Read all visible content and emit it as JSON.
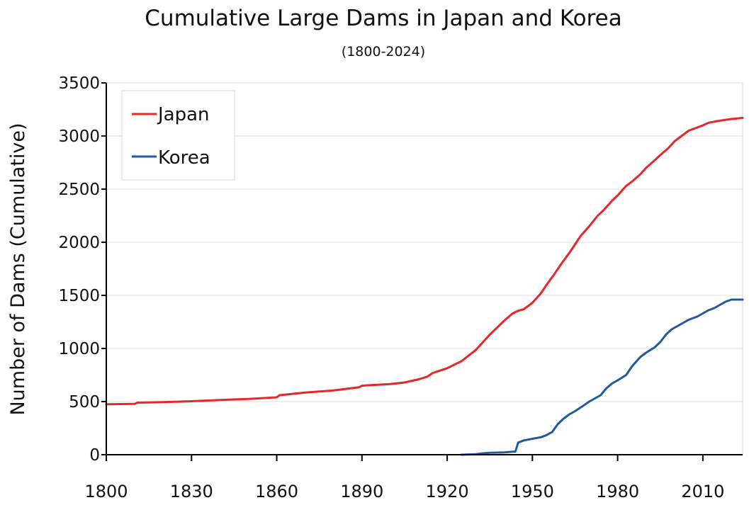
{
  "chart_data": {
    "type": "line",
    "title": "Cumulative Large Dams in Japan and Korea",
    "subtitle": "(1800-2024)",
    "ylabel": "Number of Dams (Cumulative)",
    "xlim": [
      1800,
      2024
    ],
    "ylim": [
      0,
      3500
    ],
    "xticks": [
      1800,
      1830,
      1860,
      1890,
      1920,
      1950,
      1980,
      2010
    ],
    "yticks": [
      0,
      500,
      1000,
      1500,
      2000,
      2500,
      3000,
      3500
    ],
    "grid": "horizontal",
    "legend_position": "top-left",
    "series": [
      {
        "name": "Japan",
        "color": "#e8262a",
        "points": [
          [
            1800,
            475
          ],
          [
            1810,
            478
          ],
          [
            1811,
            490
          ],
          [
            1820,
            495
          ],
          [
            1830,
            503
          ],
          [
            1840,
            515
          ],
          [
            1850,
            525
          ],
          [
            1860,
            540
          ],
          [
            1861,
            560
          ],
          [
            1870,
            585
          ],
          [
            1880,
            605
          ],
          [
            1889,
            635
          ],
          [
            1890,
            650
          ],
          [
            1900,
            665
          ],
          [
            1905,
            680
          ],
          [
            1910,
            710
          ],
          [
            1913,
            735
          ],
          [
            1915,
            770
          ],
          [
            1920,
            815
          ],
          [
            1925,
            880
          ],
          [
            1930,
            985
          ],
          [
            1935,
            1130
          ],
          [
            1940,
            1260
          ],
          [
            1943,
            1330
          ],
          [
            1945,
            1355
          ],
          [
            1947,
            1370
          ],
          [
            1950,
            1430
          ],
          [
            1953,
            1520
          ],
          [
            1955,
            1600
          ],
          [
            1958,
            1710
          ],
          [
            1960,
            1790
          ],
          [
            1963,
            1900
          ],
          [
            1965,
            1980
          ],
          [
            1967,
            2060
          ],
          [
            1970,
            2150
          ],
          [
            1973,
            2250
          ],
          [
            1975,
            2300
          ],
          [
            1978,
            2390
          ],
          [
            1980,
            2440
          ],
          [
            1983,
            2530
          ],
          [
            1985,
            2570
          ],
          [
            1988,
            2640
          ],
          [
            1990,
            2700
          ],
          [
            1993,
            2770
          ],
          [
            1995,
            2820
          ],
          [
            1998,
            2890
          ],
          [
            2000,
            2950
          ],
          [
            2003,
            3010
          ],
          [
            2005,
            3050
          ],
          [
            2008,
            3080
          ],
          [
            2010,
            3100
          ],
          [
            2012,
            3125
          ],
          [
            2015,
            3140
          ],
          [
            2020,
            3160
          ],
          [
            2024,
            3170
          ]
        ]
      },
      {
        "name": "Korea",
        "color": "#1f5aa0",
        "points": [
          [
            1925,
            0
          ],
          [
            1930,
            5
          ],
          [
            1932,
            12
          ],
          [
            1935,
            18
          ],
          [
            1940,
            22
          ],
          [
            1944,
            30
          ],
          [
            1945,
            115
          ],
          [
            1947,
            135
          ],
          [
            1950,
            150
          ],
          [
            1953,
            165
          ],
          [
            1955,
            185
          ],
          [
            1957,
            215
          ],
          [
            1959,
            290
          ],
          [
            1961,
            340
          ],
          [
            1963,
            380
          ],
          [
            1965,
            410
          ],
          [
            1967,
            445
          ],
          [
            1970,
            500
          ],
          [
            1972,
            530
          ],
          [
            1974,
            560
          ],
          [
            1976,
            625
          ],
          [
            1978,
            670
          ],
          [
            1980,
            700
          ],
          [
            1983,
            750
          ],
          [
            1985,
            830
          ],
          [
            1988,
            920
          ],
          [
            1990,
            960
          ],
          [
            1993,
            1010
          ],
          [
            1995,
            1060
          ],
          [
            1997,
            1130
          ],
          [
            1999,
            1180
          ],
          [
            2001,
            1210
          ],
          [
            2003,
            1240
          ],
          [
            2005,
            1270
          ],
          [
            2008,
            1300
          ],
          [
            2010,
            1330
          ],
          [
            2012,
            1360
          ],
          [
            2014,
            1380
          ],
          [
            2016,
            1410
          ],
          [
            2018,
            1440
          ],
          [
            2020,
            1460
          ],
          [
            2024,
            1460
          ]
        ]
      }
    ]
  }
}
